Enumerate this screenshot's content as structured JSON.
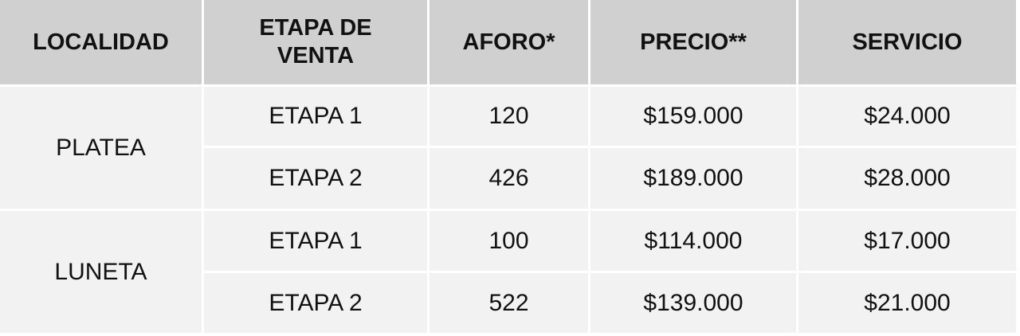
{
  "table": {
    "header": [
      "LOCALIDAD",
      "ETAPA DE VENTA",
      "AFORO*",
      "PRECIO**",
      "SERVICIO"
    ],
    "groups": [
      {
        "localidad": "PLATEA",
        "rows": [
          [
            "ETAPA 1",
            120,
            "$159.000",
            "$24.000"
          ],
          [
            "ETAPA 2",
            426,
            "$189.000",
            "$28.000"
          ]
        ]
      },
      {
        "localidad": "LUNETA",
        "rows": [
          [
            "ETAPA 1",
            100,
            "$114.000",
            "$17.000"
          ],
          [
            "ETAPA 2",
            522,
            "$139.000",
            "$21.000"
          ]
        ]
      }
    ]
  }
}
